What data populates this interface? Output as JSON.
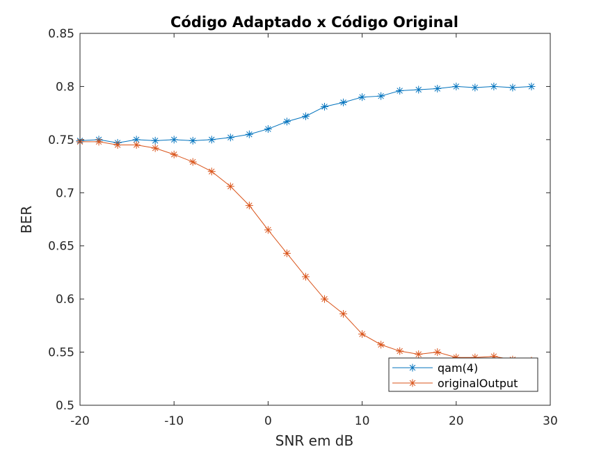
{
  "chart_data": {
    "type": "line",
    "title": "Código Adaptado x Código Original",
    "xlabel": "SNR em dB",
    "ylabel": "BER",
    "xlim": [
      -20,
      30
    ],
    "ylim": [
      0.5,
      0.85
    ],
    "x_ticks": [
      -20,
      -10,
      0,
      10,
      20,
      30
    ],
    "y_ticks": [
      0.5,
      0.55,
      0.6,
      0.65,
      0.7,
      0.75,
      0.8,
      0.85
    ],
    "x_tick_labels": [
      "-20",
      "-10",
      "0",
      "10",
      "20",
      "30"
    ],
    "y_tick_labels": [
      "0.5",
      "0.55",
      "0.6",
      "0.65",
      "0.7",
      "0.75",
      "0.8",
      "0.85"
    ],
    "grid": false,
    "legend_position": "bottom-right",
    "x": [
      -20,
      -18,
      -16,
      -14,
      -12,
      -10,
      -8,
      -6,
      -4,
      -2,
      0,
      2,
      4,
      6,
      8,
      10,
      12,
      14,
      16,
      18,
      20,
      22,
      24,
      26,
      28
    ],
    "series": [
      {
        "name": "qam(4)",
        "color": "#0072BD",
        "marker": "asterisk",
        "values": [
          0.749,
          0.75,
          0.747,
          0.75,
          0.749,
          0.75,
          0.749,
          0.75,
          0.752,
          0.755,
          0.76,
          0.767,
          0.772,
          0.781,
          0.785,
          0.79,
          0.791,
          0.796,
          0.797,
          0.798,
          0.8,
          0.799,
          0.8,
          0.799,
          0.8
        ]
      },
      {
        "name": "originalOutput",
        "color": "#D95319",
        "marker": "asterisk",
        "values": [
          0.748,
          0.748,
          0.745,
          0.745,
          0.742,
          0.736,
          0.729,
          0.72,
          0.706,
          0.688,
          0.665,
          0.643,
          0.621,
          0.6,
          0.586,
          0.567,
          0.557,
          0.551,
          0.548,
          0.55,
          0.545,
          0.545,
          0.546,
          0.543,
          0.542
        ]
      }
    ]
  }
}
